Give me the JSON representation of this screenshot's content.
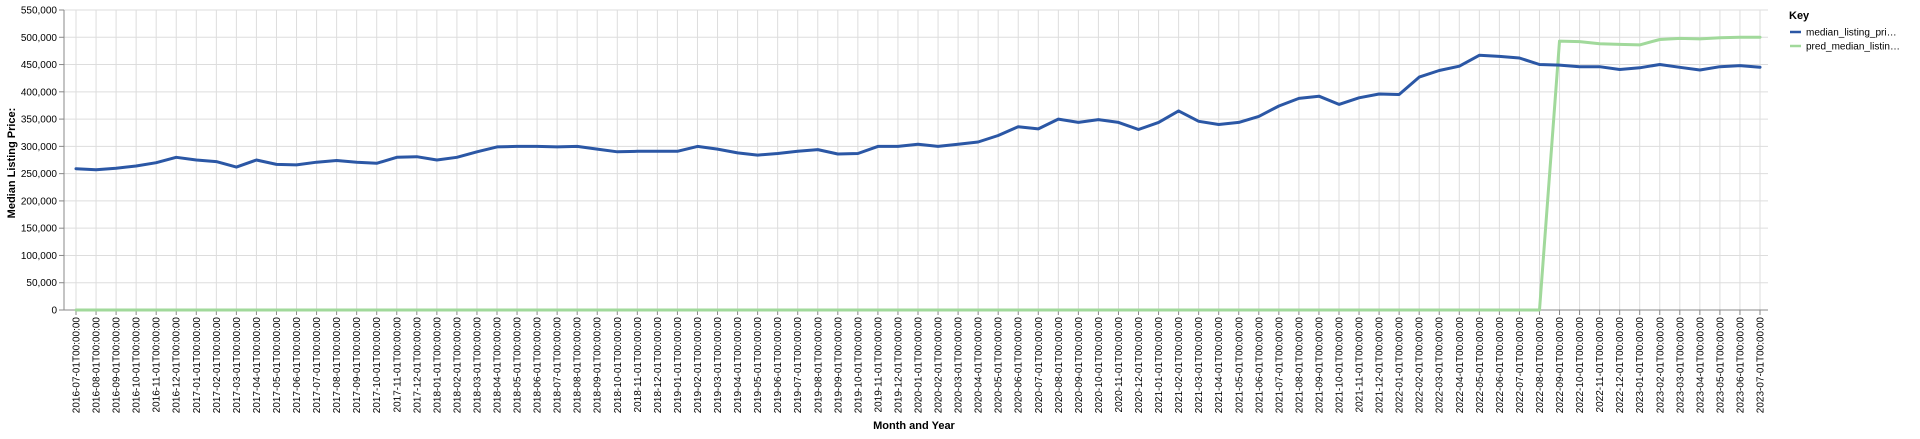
{
  "chart_data": {
    "type": "line",
    "xlabel": "Month and Year",
    "ylabel": "Median Listing Price:",
    "ylim": [
      0,
      550000
    ],
    "yticks": [
      0,
      50000,
      100000,
      150000,
      200000,
      250000,
      300000,
      350000,
      400000,
      450000,
      500000,
      550000
    ],
    "ytick_labels": [
      "0",
      "50,000",
      "100,000",
      "150,000",
      "200,000",
      "250,000",
      "300,000",
      "350,000",
      "400,000",
      "450,000",
      "500,000",
      "550,000"
    ],
    "grid": true,
    "legend": {
      "title": "Key",
      "placement": "top-right",
      "entries": [
        "median_listing_pri…",
        "pred_median_listin…"
      ]
    },
    "x": [
      "2016-07-01T00:00:00",
      "2016-08-01T00:00:00",
      "2016-09-01T00:00:00",
      "2016-10-01T00:00:00",
      "2016-11-01T00:00:00",
      "2016-12-01T00:00:00",
      "2017-01-01T00:00:00",
      "2017-02-01T00:00:00",
      "2017-03-01T00:00:00",
      "2017-04-01T00:00:00",
      "2017-05-01T00:00:00",
      "2017-06-01T00:00:00",
      "2017-07-01T00:00:00",
      "2017-08-01T00:00:00",
      "2017-09-01T00:00:00",
      "2017-10-01T00:00:00",
      "2017-11-01T00:00:00",
      "2017-12-01T00:00:00",
      "2018-01-01T00:00:00",
      "2018-02-01T00:00:00",
      "2018-03-01T00:00:00",
      "2018-04-01T00:00:00",
      "2018-05-01T00:00:00",
      "2018-06-01T00:00:00",
      "2018-07-01T00:00:00",
      "2018-08-01T00:00:00",
      "2018-09-01T00:00:00",
      "2018-10-01T00:00:00",
      "2018-11-01T00:00:00",
      "2018-12-01T00:00:00",
      "2019-01-01T00:00:00",
      "2019-02-01T00:00:00",
      "2019-03-01T00:00:00",
      "2019-04-01T00:00:00",
      "2019-05-01T00:00:00",
      "2019-06-01T00:00:00",
      "2019-07-01T00:00:00",
      "2019-08-01T00:00:00",
      "2019-09-01T00:00:00",
      "2019-10-01T00:00:00",
      "2019-11-01T00:00:00",
      "2019-12-01T00:00:00",
      "2020-01-01T00:00:00",
      "2020-02-01T00:00:00",
      "2020-03-01T00:00:00",
      "2020-04-01T00:00:00",
      "2020-05-01T00:00:00",
      "2020-06-01T00:00:00",
      "2020-07-01T00:00:00",
      "2020-08-01T00:00:00",
      "2020-09-01T00:00:00",
      "2020-10-01T00:00:00",
      "2020-11-01T00:00:00",
      "2020-12-01T00:00:00",
      "2021-01-01T00:00:00",
      "2021-02-01T00:00:00",
      "2021-03-01T00:00:00",
      "2021-04-01T00:00:00",
      "2021-05-01T00:00:00",
      "2021-06-01T00:00:00",
      "2021-07-01T00:00:00",
      "2021-08-01T00:00:00",
      "2021-09-01T00:00:00",
      "2021-10-01T00:00:00",
      "2021-11-01T00:00:00",
      "2021-12-01T00:00:00",
      "2022-01-01T00:00:00",
      "2022-02-01T00:00:00",
      "2022-03-01T00:00:00",
      "2022-04-01T00:00:00",
      "2022-05-01T00:00:00",
      "2022-06-01T00:00:00",
      "2022-07-01T00:00:00",
      "2022-08-01T00:00:00",
      "2022-09-01T00:00:00",
      "2022-10-01T00:00:00",
      "2022-11-01T00:00:00",
      "2022-12-01T00:00:00",
      "2023-01-01T00:00:00",
      "2023-02-01T00:00:00",
      "2023-03-01T00:00:00",
      "2023-04-01T00:00:00",
      "2023-05-01T00:00:00",
      "2023-06-01T00:00:00",
      "2023-07-01T00:00:00"
    ],
    "series": [
      {
        "name": "median_listing_pri…",
        "color": "#2b57a5",
        "values": [
          259000,
          257000,
          260000,
          264000,
          270000,
          280000,
          275000,
          272000,
          262000,
          275000,
          267000,
          266000,
          271000,
          274000,
          271000,
          269000,
          280000,
          281000,
          275000,
          280000,
          290000,
          299000,
          300000,
          300000,
          299000,
          300000,
          295000,
          290000,
          291000,
          291000,
          291000,
          300000,
          295000,
          288000,
          284000,
          287000,
          291000,
          294000,
          286000,
          287000,
          300000,
          300000,
          304000,
          300000,
          304000,
          308000,
          320000,
          336000,
          332000,
          350000,
          344000,
          349000,
          344000,
          331000,
          344000,
          365000,
          346000,
          340000,
          344000,
          355000,
          374000,
          388000,
          392000,
          377000,
          389000,
          396000,
          395000,
          427000,
          439000,
          447000,
          467000,
          465000,
          462000,
          450000,
          449000,
          446000,
          446000,
          441000,
          444000,
          450000,
          445000,
          440000,
          446000,
          448000,
          445000
        ]
      },
      {
        "name": "pred_median_listin…",
        "color": "#a1d99b",
        "values": [
          0,
          0,
          0,
          0,
          0,
          0,
          0,
          0,
          0,
          0,
          0,
          0,
          0,
          0,
          0,
          0,
          0,
          0,
          0,
          0,
          0,
          0,
          0,
          0,
          0,
          0,
          0,
          0,
          0,
          0,
          0,
          0,
          0,
          0,
          0,
          0,
          0,
          0,
          0,
          0,
          0,
          0,
          0,
          0,
          0,
          0,
          0,
          0,
          0,
          0,
          0,
          0,
          0,
          0,
          0,
          0,
          0,
          0,
          0,
          0,
          0,
          0,
          0,
          0,
          0,
          0,
          0,
          0,
          0,
          0,
          0,
          0,
          0,
          0,
          493000,
          492000,
          488000,
          487000,
          486000,
          496000,
          498000,
          497000,
          499000,
          500000,
          500000
        ]
      }
    ]
  }
}
